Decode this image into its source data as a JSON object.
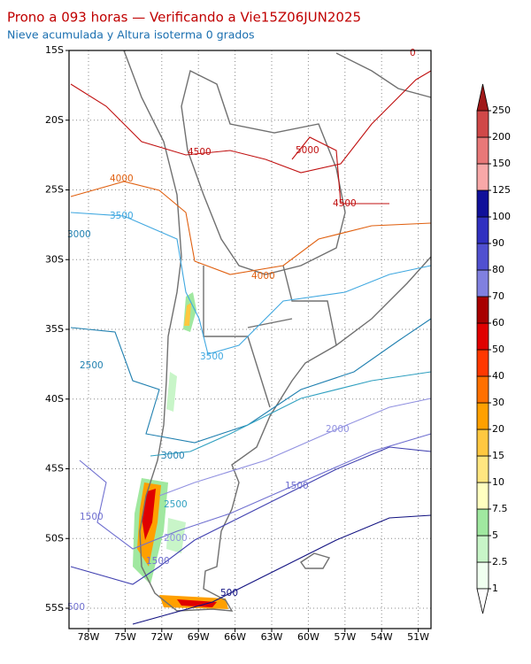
{
  "header": {
    "title": "Prono a 093 horas — Verificando a Vie15Z06JUN2025",
    "subtitle": "Nieve acumulada y Altura isoterma 0 grados"
  },
  "map": {
    "lat_ticks": [
      {
        "value": -15,
        "label": "15S"
      },
      {
        "value": -20,
        "label": "20S"
      },
      {
        "value": -25,
        "label": "25S"
      },
      {
        "value": -30,
        "label": "30S"
      },
      {
        "value": -35,
        "label": "35S"
      },
      {
        "value": -40,
        "label": "40S"
      },
      {
        "value": -45,
        "label": "45S"
      },
      {
        "value": -50,
        "label": "50S"
      },
      {
        "value": -55,
        "label": "55S"
      }
    ],
    "lon_ticks": [
      {
        "value": -78,
        "label": "78W"
      },
      {
        "value": -75,
        "label": "75W"
      },
      {
        "value": -72,
        "label": "72W"
      },
      {
        "value": -69,
        "label": "69W"
      },
      {
        "value": -66,
        "label": "66W"
      },
      {
        "value": -63,
        "label": "63W"
      },
      {
        "value": -60,
        "label": "60W"
      },
      {
        "value": -57,
        "label": "57W"
      },
      {
        "value": -54,
        "label": "54W"
      },
      {
        "value": -51,
        "label": "51W"
      }
    ],
    "contour_labels": [
      "4500",
      "5000",
      "4500",
      "4000",
      "4000",
      "3500",
      "3500",
      "3000",
      "2500",
      "2500",
      "3000",
      "2000",
      "1500",
      "1500",
      "2000",
      "1500",
      "500",
      "0",
      "500"
    ]
  },
  "colorbar": {
    "levels": [
      1,
      2.5,
      5,
      7.5,
      10,
      15,
      20,
      30,
      40,
      50,
      60,
      70,
      80,
      90,
      100,
      125,
      150,
      200,
      250
    ],
    "colors": [
      "#f0fff0",
      "#c8f5c8",
      "#a0e8a0",
      "#ffffc0",
      "#ffe680",
      "#ffc840",
      "#ffa000",
      "#ff7000",
      "#ff3800",
      "#e00000",
      "#a80000",
      "#8080e0",
      "#5050d0",
      "#3030c0",
      "#10109a",
      "#f8a8a8",
      "#e87878",
      "#d04848"
    ],
    "under_color": "#ffffff",
    "over_color": "#a01818"
  }
}
